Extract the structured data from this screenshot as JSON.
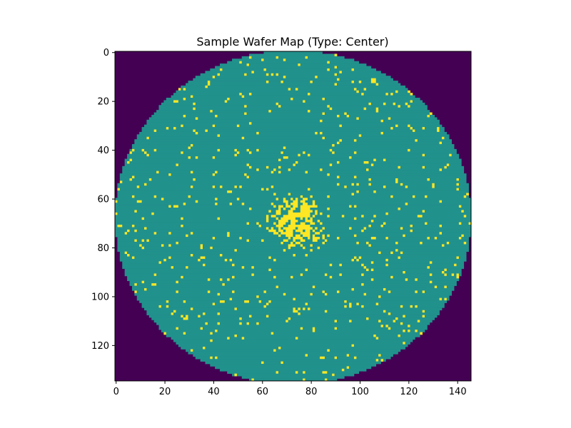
{
  "chart_data": {
    "type": "heatmap",
    "title": "Sample Wafer Map (Type: Center)",
    "xlabel": "",
    "ylabel": "",
    "grid": {
      "cols": 146,
      "rows": 135
    },
    "xlim": [
      -0.5,
      145.5
    ],
    "ylim": [
      134.5,
      -0.5
    ],
    "x_ticks": [
      0,
      20,
      40,
      60,
      80,
      100,
      120,
      140
    ],
    "y_ticks": [
      0,
      20,
      40,
      60,
      80,
      100,
      120
    ],
    "x_tick_labels": [
      "0",
      "20",
      "40",
      "60",
      "80",
      "100",
      "120",
      "140"
    ],
    "y_tick_labels": [
      "0",
      "20",
      "40",
      "60",
      "80",
      "100",
      "120"
    ],
    "colormap": "viridis",
    "value_colors": {
      "0": "#440154",
      "1": "#21918c",
      "2": "#fde725"
    },
    "value_meaning": {
      "0": "outside wafer",
      "1": "die (pass)",
      "2": "die (defect)"
    },
    "wafer": {
      "center_x": 72.5,
      "center_y": 67.5,
      "radius_x": 73,
      "radius_y": 68.5
    },
    "defect_cluster": {
      "center_x": 74,
      "center_y": 70,
      "dense_radius": 6,
      "extent_radius": 14
    },
    "background_defect_rate": 0.035
  }
}
